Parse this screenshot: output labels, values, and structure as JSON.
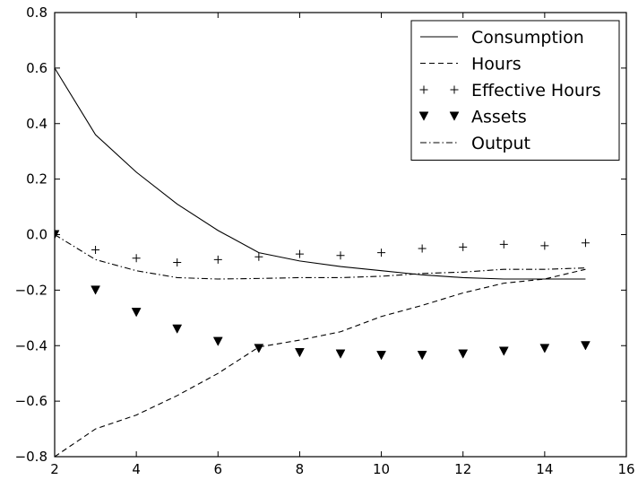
{
  "chart_data": {
    "type": "line",
    "x": [
      2,
      3,
      4,
      5,
      6,
      7,
      8,
      9,
      10,
      11,
      12,
      13,
      14,
      15
    ],
    "xlim": [
      2,
      16
    ],
    "ylim": [
      -0.8,
      0.8
    ],
    "xticks": [
      2,
      4,
      6,
      8,
      10,
      12,
      14,
      16
    ],
    "yticks": [
      -0.8,
      -0.6,
      -0.4,
      -0.2,
      0.0,
      0.2,
      0.4,
      0.6,
      0.8
    ],
    "xtick_labels": [
      "2",
      "4",
      "6",
      "8",
      "10",
      "12",
      "14",
      "16"
    ],
    "ytick_labels": [
      "−0.8",
      "−0.6",
      "−0.4",
      "−0.2",
      "0.0",
      "0.2",
      "0.4",
      "0.6",
      "0.8"
    ],
    "grid": false,
    "legend_position": "top-right",
    "series": [
      {
        "name": "Consumption",
        "style": "solid",
        "color": "#000000",
        "values": [
          0.6,
          0.36,
          0.225,
          0.11,
          0.015,
          -0.065,
          -0.095,
          -0.115,
          -0.13,
          -0.145,
          -0.155,
          -0.16,
          -0.16,
          -0.16
        ]
      },
      {
        "name": "Hours",
        "style": "dashed",
        "color": "#000000",
        "values": [
          -0.8,
          -0.7,
          -0.65,
          -0.58,
          -0.5,
          -0.405,
          -0.38,
          -0.35,
          -0.295,
          -0.255,
          -0.21,
          -0.175,
          -0.16,
          -0.125
        ]
      },
      {
        "name": "Effective Hours",
        "style": "plus-marker",
        "color": "#000000",
        "values": [
          0.0,
          -0.055,
          -0.085,
          -0.1,
          -0.09,
          -0.08,
          -0.07,
          -0.075,
          -0.065,
          -0.05,
          -0.045,
          -0.035,
          -0.04,
          -0.03
        ]
      },
      {
        "name": "Assets",
        "style": "triangle-down-marker",
        "color": "#000000",
        "values": [
          0.0,
          -0.2,
          -0.28,
          -0.34,
          -0.385,
          -0.41,
          -0.425,
          -0.43,
          -0.435,
          -0.435,
          -0.43,
          -0.42,
          -0.41,
          -0.4
        ]
      },
      {
        "name": "Output",
        "style": "dashdot",
        "color": "#000000",
        "values": [
          0.0,
          -0.09,
          -0.13,
          -0.155,
          -0.16,
          -0.158,
          -0.155,
          -0.155,
          -0.15,
          -0.14,
          -0.135,
          -0.125,
          -0.125,
          -0.12
        ]
      }
    ]
  }
}
